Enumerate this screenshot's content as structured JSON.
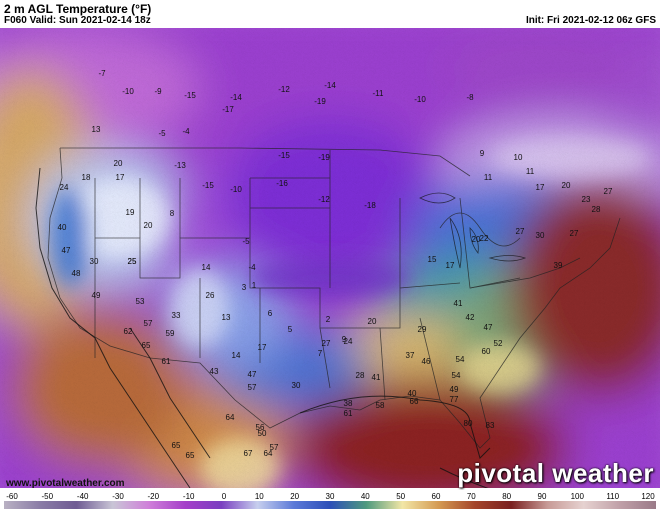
{
  "header": {
    "title": "2 m AGL Temperature (°F)",
    "valid": "F060 Valid: Sun 2021-02-14 18z",
    "init": "Init: Fri 2021-02-12 06z GFS"
  },
  "footer": {
    "credit": "www.pivotalweather.com",
    "brand": "pivotal weather"
  },
  "colorbar": {
    "labels": [
      "-60",
      "-50",
      "-40",
      "-30",
      "-20",
      "-10",
      "0",
      "10",
      "20",
      "30",
      "40",
      "50",
      "60",
      "70",
      "80",
      "90",
      "100",
      "110",
      "120"
    ],
    "stops": [
      {
        "value": -60,
        "color": "#b9b1c3"
      },
      {
        "value": -50,
        "color": "#8a7ca6"
      },
      {
        "value": -40,
        "color": "#6f5b93"
      },
      {
        "value": -30,
        "color": "#c9c5d6"
      },
      {
        "value": -20,
        "color": "#cf7fd9"
      },
      {
        "value": -10,
        "color": "#a53fc9"
      },
      {
        "value": 0,
        "color": "#7a3fc0"
      },
      {
        "value": 10,
        "color": "#c7cfee"
      },
      {
        "value": 20,
        "color": "#5b79d8"
      },
      {
        "value": 30,
        "color": "#2c4fb8"
      },
      {
        "value": 40,
        "color": "#4e9a7e"
      },
      {
        "value": 50,
        "color": "#f2e6a6"
      },
      {
        "value": 60,
        "color": "#d49a52"
      },
      {
        "value": 70,
        "color": "#a4452a"
      },
      {
        "value": 80,
        "color": "#7a2020"
      },
      {
        "value": 90,
        "color": "#c79a96"
      },
      {
        "value": 100,
        "color": "#e6d2d0"
      },
      {
        "value": 110,
        "color": "#c0a0a8"
      },
      {
        "value": 120,
        "color": "#9a7a88"
      }
    ]
  },
  "map_labels": [
    {
      "t": "-7"
    },
    {
      "t": "-10"
    },
    {
      "t": "-9"
    },
    {
      "t": "-15"
    },
    {
      "t": "-14"
    },
    {
      "t": "-12"
    },
    {
      "t": "-17"
    },
    {
      "t": "-19"
    },
    {
      "t": "-14"
    },
    {
      "t": "-11"
    },
    {
      "t": "-10"
    },
    {
      "t": "-8"
    },
    {
      "t": "-5"
    },
    {
      "t": "-4"
    },
    {
      "t": "13"
    },
    {
      "t": "18"
    },
    {
      "t": "20"
    },
    {
      "t": "17"
    },
    {
      "t": "24"
    },
    {
      "t": "19"
    },
    {
      "t": "20"
    },
    {
      "t": "8"
    },
    {
      "t": "-13"
    },
    {
      "t": "-15"
    },
    {
      "t": "-10"
    },
    {
      "t": "-16"
    },
    {
      "t": "-19"
    },
    {
      "t": "-12"
    },
    {
      "t": "-18"
    },
    {
      "t": "-15"
    },
    {
      "t": "9"
    },
    {
      "t": "10"
    },
    {
      "t": "11"
    },
    {
      "t": "11"
    },
    {
      "t": "17"
    },
    {
      "t": "20"
    },
    {
      "t": "27"
    },
    {
      "t": "23"
    },
    {
      "t": "28"
    },
    {
      "t": "25"
    },
    {
      "t": "40"
    },
    {
      "t": "47"
    },
    {
      "t": "30"
    },
    {
      "t": "25"
    },
    {
      "t": "14"
    },
    {
      "t": "3"
    },
    {
      "t": "-5"
    },
    {
      "t": "-4"
    },
    {
      "t": "1"
    },
    {
      "t": "15"
    },
    {
      "t": "17"
    },
    {
      "t": "20"
    },
    {
      "t": "22"
    },
    {
      "t": "27"
    },
    {
      "t": "30"
    },
    {
      "t": "27"
    },
    {
      "t": "39"
    },
    {
      "t": "48"
    },
    {
      "t": "49"
    },
    {
      "t": "53"
    },
    {
      "t": "26"
    },
    {
      "t": "33"
    },
    {
      "t": "13"
    },
    {
      "t": "6"
    },
    {
      "t": "5"
    },
    {
      "t": "2"
    },
    {
      "t": "7"
    },
    {
      "t": "9"
    },
    {
      "t": "20"
    },
    {
      "t": "24"
    },
    {
      "t": "29"
    },
    {
      "t": "41"
    },
    {
      "t": "42"
    },
    {
      "t": "54"
    },
    {
      "t": "62"
    },
    {
      "t": "57"
    },
    {
      "t": "59"
    },
    {
      "t": "65"
    },
    {
      "t": "14"
    },
    {
      "t": "17"
    },
    {
      "t": "27"
    },
    {
      "t": "28"
    },
    {
      "t": "37"
    },
    {
      "t": "46"
    },
    {
      "t": "54"
    },
    {
      "t": "49"
    },
    {
      "t": "60"
    },
    {
      "t": "52"
    },
    {
      "t": "47"
    },
    {
      "t": "61"
    },
    {
      "t": "43"
    },
    {
      "t": "47"
    },
    {
      "t": "30"
    },
    {
      "t": "38"
    },
    {
      "t": "41"
    },
    {
      "t": "40"
    },
    {
      "t": "65"
    },
    {
      "t": "57"
    },
    {
      "t": "77"
    },
    {
      "t": "83"
    },
    {
      "t": "61"
    },
    {
      "t": "58"
    },
    {
      "t": "66"
    },
    {
      "t": "64"
    },
    {
      "t": "56"
    },
    {
      "t": "50"
    },
    {
      "t": "57"
    },
    {
      "t": "80"
    },
    {
      "t": "67"
    },
    {
      "t": "64"
    },
    {
      "t": "65"
    }
  ]
}
